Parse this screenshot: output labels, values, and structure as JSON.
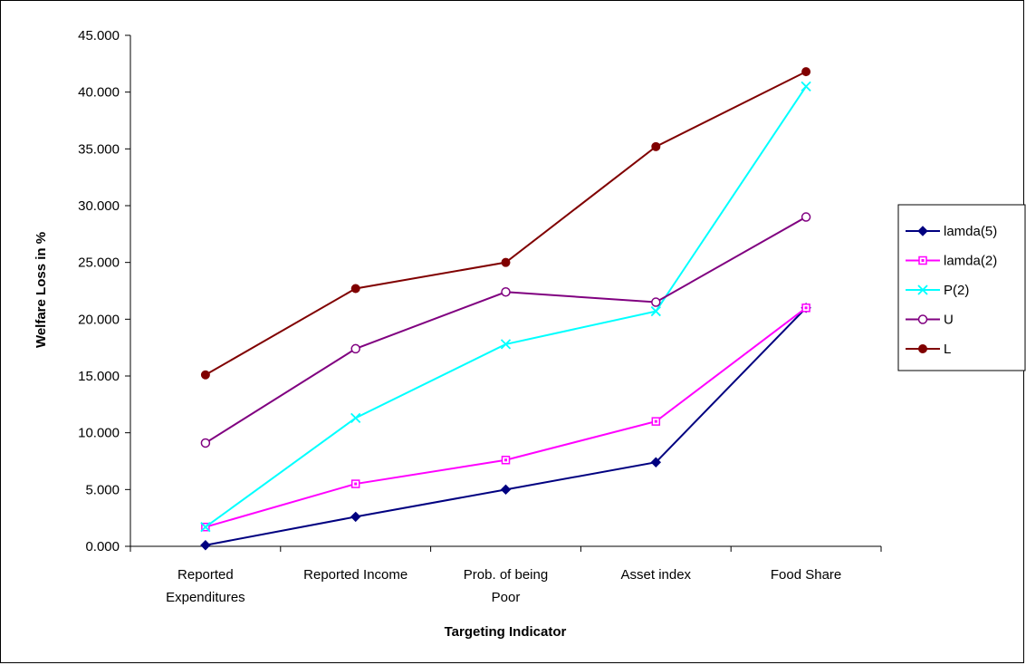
{
  "chart_data": {
    "type": "line",
    "xlabel": "Targeting Indicator",
    "ylabel": "Welfare Loss in %",
    "ylim": [
      0,
      45
    ],
    "ytick_step": 5,
    "ytick_labels": [
      "0.000",
      "5.000",
      "10.000",
      "15.000",
      "20.000",
      "25.000",
      "30.000",
      "35.000",
      "40.000",
      "45.000"
    ],
    "categories": [
      [
        "Reported",
        "Expenditures"
      ],
      [
        "Reported Income"
      ],
      [
        "Prob. of being",
        "Poor"
      ],
      [
        "Asset index"
      ],
      [
        "Food Share"
      ]
    ],
    "grid": false,
    "legend_position": "right",
    "series": [
      {
        "name": "lamda(5)",
        "values": [
          0.1,
          2.6,
          5.0,
          7.4,
          21.0
        ],
        "color": "#000080",
        "marker": "diamond-filled"
      },
      {
        "name": "lamda(2)",
        "values": [
          1.7,
          5.5,
          7.6,
          11.0,
          21.0
        ],
        "color": "#ff00ff",
        "marker": "square-open"
      },
      {
        "name": "P(2)",
        "values": [
          1.7,
          11.3,
          17.8,
          20.7,
          40.5
        ],
        "color": "#00ffff",
        "marker": "x"
      },
      {
        "name": "U",
        "values": [
          9.1,
          17.4,
          22.4,
          21.5,
          29.0
        ],
        "color": "#800080",
        "marker": "circle-open"
      },
      {
        "name": "L",
        "values": [
          15.1,
          22.7,
          25.0,
          35.2,
          41.8
        ],
        "color": "#800000",
        "marker": "circle-filled"
      }
    ]
  }
}
